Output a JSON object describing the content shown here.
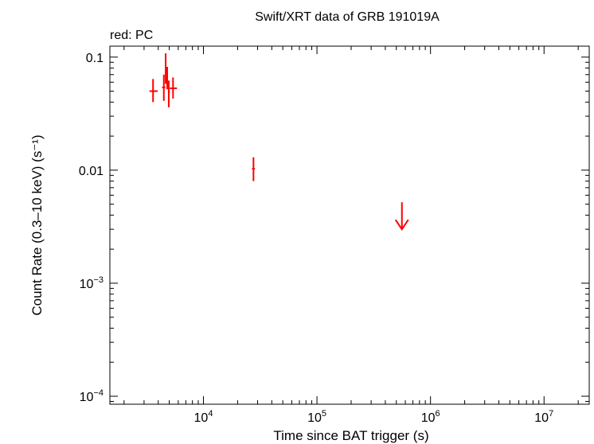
{
  "chart_data": {
    "type": "scatter",
    "title": "Swift/XRT data of GRB 191019A",
    "subtitle": "red: PC",
    "xlabel": "Time since BAT trigger (s)",
    "ylabel": "Count Rate (0.3–10 keV) (s⁻¹)",
    "x_scale": "log",
    "y_scale": "log",
    "xlim": [
      1500,
      25000000
    ],
    "ylim": [
      8.5e-05,
      0.125
    ],
    "x_ticks": [
      {
        "value": 10000,
        "mantissa": "10",
        "exp": "4"
      },
      {
        "value": 100000,
        "mantissa": "10",
        "exp": "5"
      },
      {
        "value": 1000000,
        "mantissa": "10",
        "exp": "6"
      },
      {
        "value": 10000000,
        "mantissa": "10",
        "exp": "7"
      }
    ],
    "y_ticks": [
      {
        "value": 0.1,
        "mantissa": "0.1",
        "exp": ""
      },
      {
        "value": 0.01,
        "mantissa": "0.01",
        "exp": ""
      },
      {
        "value": 0.001,
        "mantissa": "10",
        "exp": "−3"
      },
      {
        "value": 0.0001,
        "mantissa": "10",
        "exp": "−4"
      }
    ],
    "grid": false,
    "series": [
      {
        "color": "#ff0000",
        "points": [
          {
            "x": 3600,
            "xlo": 3350,
            "xhi": 3950,
            "y": 0.05,
            "ylo": 0.04,
            "yhi": 0.064
          },
          {
            "x": 4480,
            "xlo": 4320,
            "xhi": 4620,
            "y": 0.054,
            "ylo": 0.041,
            "yhi": 0.07
          },
          {
            "x": 4650,
            "xlo": 4580,
            "xhi": 4720,
            "y": 0.082,
            "ylo": 0.058,
            "yhi": 0.108
          },
          {
            "x": 4800,
            "xlo": 4720,
            "xhi": 4880,
            "y": 0.066,
            "ylo": 0.052,
            "yhi": 0.082
          },
          {
            "x": 4950,
            "xlo": 4880,
            "xhi": 5060,
            "y": 0.049,
            "ylo": 0.036,
            "yhi": 0.062
          },
          {
            "x": 5400,
            "xlo": 5050,
            "xhi": 5850,
            "y": 0.053,
            "ylo": 0.043,
            "yhi": 0.066
          },
          {
            "x": 27600,
            "xlo": 26800,
            "xhi": 28400,
            "y": 0.0103,
            "ylo": 0.008,
            "yhi": 0.013
          }
        ],
        "upper_limits": [
          {
            "x": 560000,
            "y": 0.0052
          }
        ]
      }
    ]
  }
}
